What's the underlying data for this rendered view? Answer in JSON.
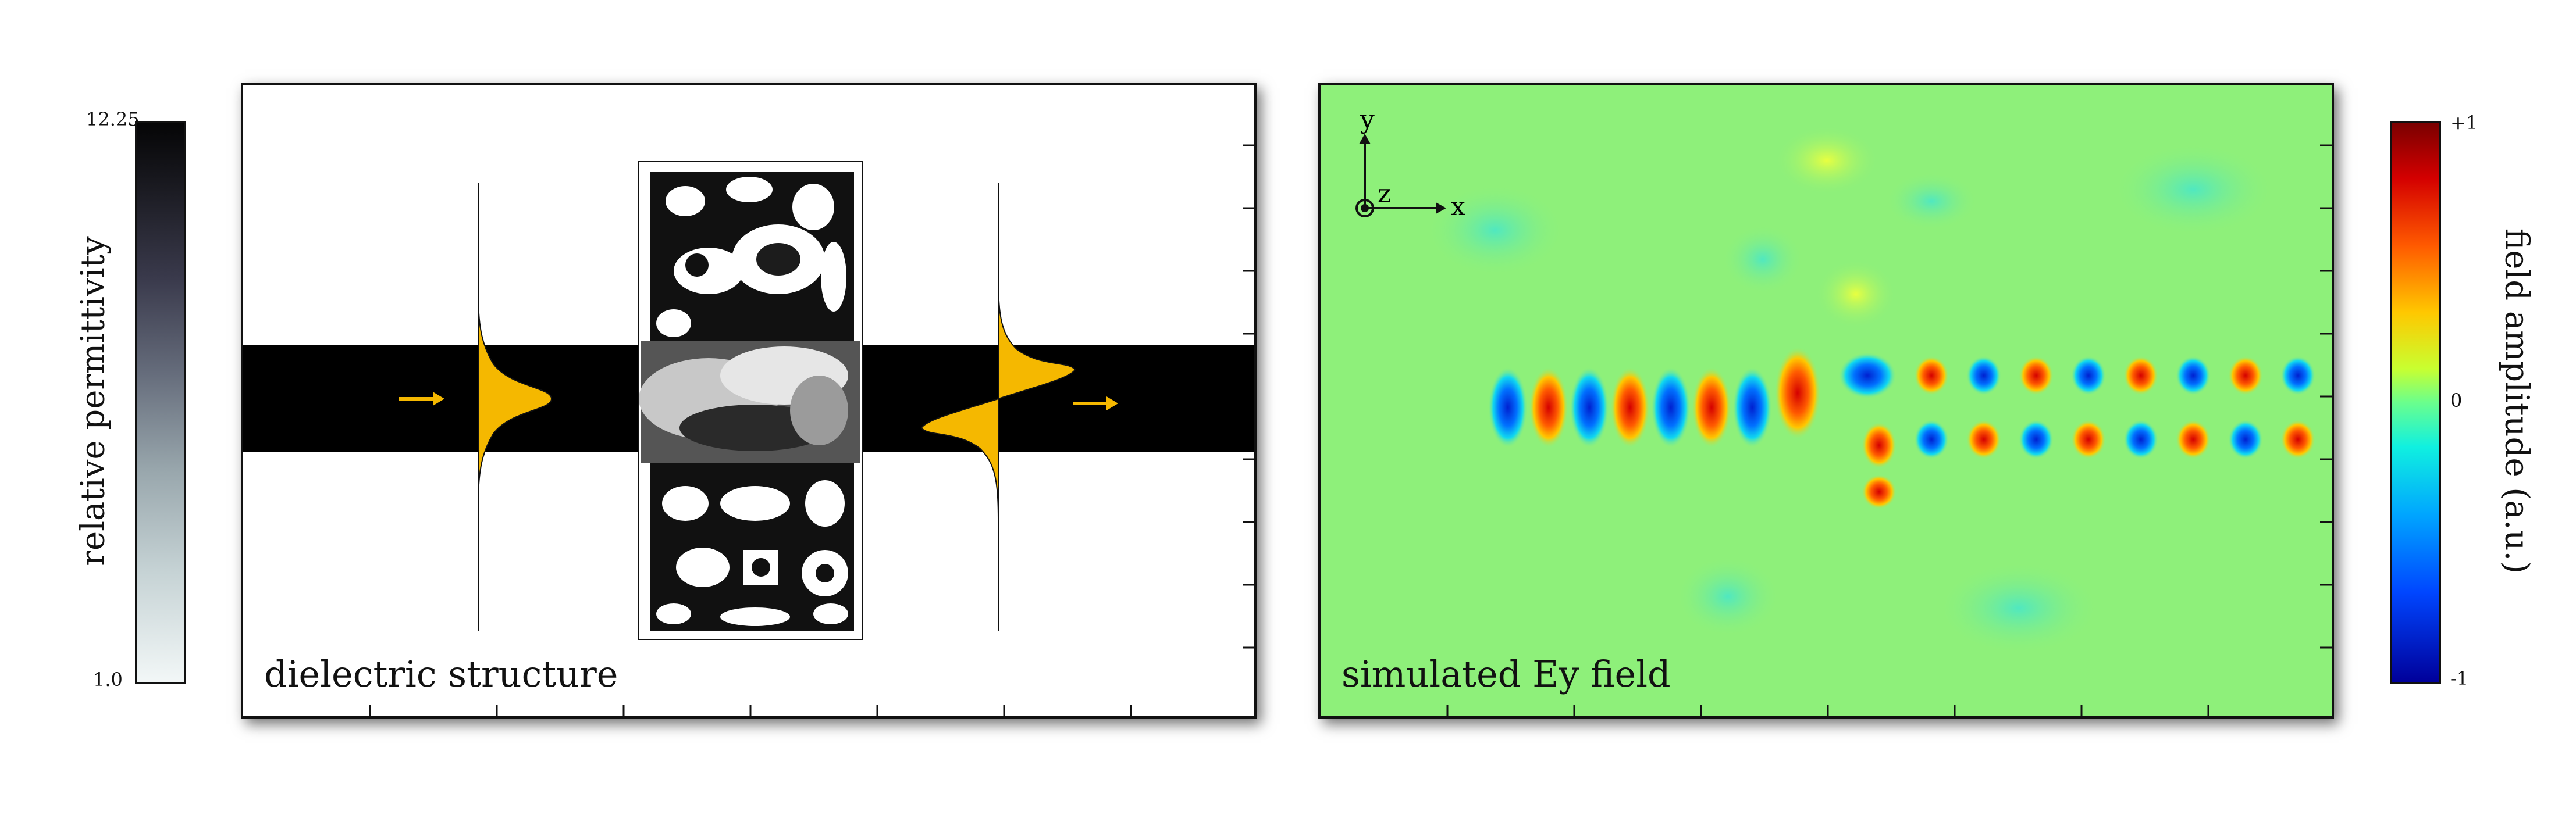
{
  "permittivity_colorbar": {
    "max_label": "12.25",
    "min_label": "1.0",
    "title": "relative permittivity",
    "colors": [
      "#050506",
      "#3a3a4c",
      "#98a6ac",
      "#f2f7f7"
    ]
  },
  "structure_panel": {
    "caption": "dielectric structure",
    "waveguide_color": "#000000",
    "mode_color": "#f5b800",
    "arrow_icon": "arrow-right"
  },
  "field_panel": {
    "caption": "simulated Ey field",
    "axes": {
      "x": "x",
      "y": "y",
      "z": "z"
    }
  },
  "field_colorbar": {
    "max_label": "+1",
    "zero_label": "0",
    "min_label": "-1",
    "title": "field amplitude (a.u.)",
    "colors": [
      "#7a0000",
      "#ff5a00",
      "#ffc800",
      "#6bff8c",
      "#10f0e0",
      "#0046ff",
      "#00009a"
    ]
  }
}
